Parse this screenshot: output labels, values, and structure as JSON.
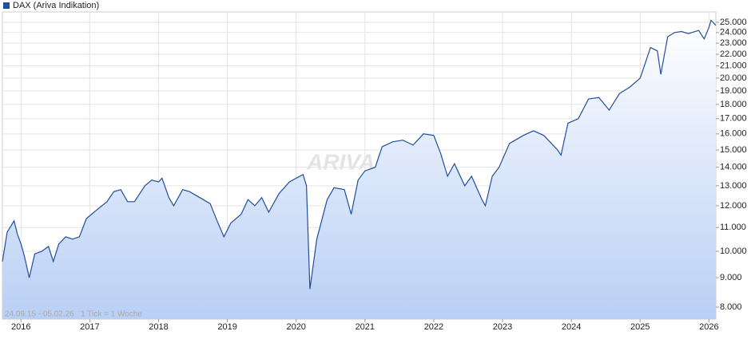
{
  "chart_data": {
    "type": "area",
    "legend": "DAX (Ariva Indikation)",
    "footnote": "24.09.15 - 05.02.26   1 Tick = 1 Woche",
    "watermark": "ARIVA.DE",
    "color": "#1f4e9c",
    "log_scale": true,
    "grid": true,
    "x": [
      2015.73,
      2015.8,
      2015.9,
      2015.95,
      2016.0,
      2016.05,
      2016.12,
      2016.2,
      2016.3,
      2016.4,
      2016.47,
      2016.55,
      2016.65,
      2016.75,
      2016.85,
      2016.95,
      2017.1,
      2017.25,
      2017.35,
      2017.45,
      2017.55,
      2017.65,
      2017.8,
      2017.9,
      2018.0,
      2018.05,
      2018.15,
      2018.22,
      2018.35,
      2018.45,
      2018.55,
      2018.65,
      2018.75,
      2018.85,
      2018.95,
      2019.05,
      2019.2,
      2019.3,
      2019.4,
      2019.5,
      2019.6,
      2019.75,
      2019.9,
      2020.1,
      2020.15,
      2020.2,
      2020.3,
      2020.45,
      2020.55,
      2020.7,
      2020.8,
      2020.9,
      2021.0,
      2021.15,
      2021.25,
      2021.4,
      2021.55,
      2021.7,
      2021.85,
      2022.0,
      2022.1,
      2022.2,
      2022.3,
      2022.45,
      2022.55,
      2022.7,
      2022.75,
      2022.85,
      2022.95,
      2023.1,
      2023.3,
      2023.45,
      2023.6,
      2023.8,
      2023.85,
      2023.95,
      2024.1,
      2024.25,
      2024.4,
      2024.55,
      2024.7,
      2024.85,
      2025.0,
      2025.15,
      2025.25,
      2025.3,
      2025.4,
      2025.5,
      2025.6,
      2025.7,
      2025.85,
      2025.93,
      2026.0,
      2026.03,
      2026.1
    ],
    "values": [
      9600,
      10800,
      11300,
      10700,
      10300,
      9800,
      9000,
      9900,
      10000,
      10200,
      9600,
      10300,
      10600,
      10500,
      10600,
      11400,
      11800,
      12200,
      12700,
      12800,
      12200,
      12200,
      13000,
      13300,
      13200,
      13400,
      12400,
      12000,
      12800,
      12700,
      12500,
      12300,
      12100,
      11300,
      10600,
      11200,
      11600,
      12300,
      12000,
      12400,
      11700,
      12600,
      13200,
      13600,
      13000,
      8600,
      10500,
      12300,
      12900,
      12800,
      11600,
      13300,
      13800,
      14000,
      15200,
      15500,
      15600,
      15300,
      16000,
      15900,
      14800,
      13500,
      14200,
      13000,
      13500,
      12300,
      12000,
      13500,
      14000,
      15400,
      15900,
      16200,
      15900,
      15000,
      14700,
      16700,
      17000,
      18400,
      18500,
      17600,
      18800,
      19300,
      20000,
      22600,
      22300,
      20300,
      23600,
      24000,
      24100,
      23900,
      24200,
      23400,
      24500,
      25200,
      24700
    ],
    "xlim": [
      2015.73,
      2026.1
    ],
    "xticks": [
      2016,
      2017,
      2018,
      2019,
      2020,
      2021,
      2022,
      2023,
      2024,
      2025,
      2026
    ],
    "ylim": [
      7625,
      26060
    ],
    "yticks": [
      {
        "value": 8000,
        "label": "8.000"
      },
      {
        "value": 9000,
        "label": "9.000"
      },
      {
        "value": 10000,
        "label": "10.000"
      },
      {
        "value": 11000,
        "label": "11.000"
      },
      {
        "value": 12000,
        "label": "12.000"
      },
      {
        "value": 13000,
        "label": "13.000"
      },
      {
        "value": 14000,
        "label": "14.000"
      },
      {
        "value": 15000,
        "label": "15.000"
      },
      {
        "value": 16000,
        "label": "16.000"
      },
      {
        "value": 17000,
        "label": "17.000"
      },
      {
        "value": 18000,
        "label": "18.000"
      },
      {
        "value": 19000,
        "label": "19.000"
      },
      {
        "value": 20000,
        "label": "20.000"
      },
      {
        "value": 21000,
        "label": "21.000"
      },
      {
        "value": 22000,
        "label": "22.000"
      },
      {
        "value": 23000,
        "label": "23.000"
      },
      {
        "value": 24000,
        "label": "24.000"
      },
      {
        "value": 25000,
        "label": "25.000"
      }
    ]
  }
}
